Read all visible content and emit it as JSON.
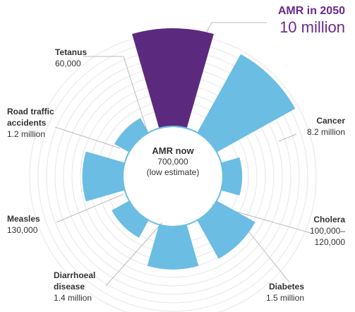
{
  "chart_data": {
    "type": "polar-bar",
    "title": "",
    "colors": {
      "highlight": "#5b2a7e",
      "default": "#6bbde3",
      "grid": "#e6e6e6",
      "leader": "#bbbbbb"
    },
    "center": {
      "name": "AMR now",
      "value_line1": "700,000",
      "value_line2": "(low estimate)",
      "value": 700000
    },
    "items": [
      {
        "name": "AMR in 2050",
        "value_text": "10 million",
        "value": 10000000,
        "highlight": true
      },
      {
        "name": "Cancer",
        "value_text": "8.2 million",
        "value": 8200000
      },
      {
        "name": "Cholera",
        "value_text": "100,000–120,000",
        "value_line1": "100,000–",
        "value_line2": "120,000",
        "value": 110000
      },
      {
        "name": "Diabetes",
        "value_text": "1.5 million",
        "value": 1500000
      },
      {
        "name": "Diarrhoeal disease",
        "name_line1": "Diarrhoeal",
        "name_line2": "disease",
        "value_text": "1.4 million",
        "value": 1400000
      },
      {
        "name": "Measles",
        "value_text": "130,000",
        "value": 130000
      },
      {
        "name": "Road traffic accidents",
        "name_line1": "Road traffic",
        "name_line2": "accidents",
        "value_text": "1.2 million",
        "value": 1200000
      },
      {
        "name": "Tetanus",
        "value_text": "60,000",
        "value": 60000
      }
    ]
  }
}
